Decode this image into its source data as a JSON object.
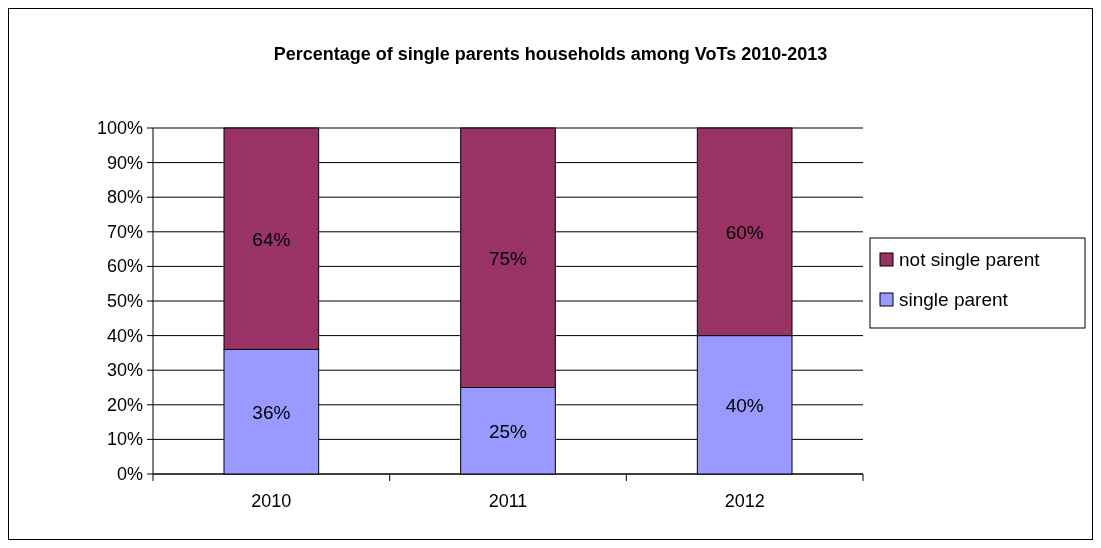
{
  "chart_data": {
    "type": "bar",
    "title": "Percentage of single parents households among VoTs 2010-2013",
    "categories": [
      "2010",
      "2011",
      "2012"
    ],
    "stacked": true,
    "ylim": [
      0,
      100
    ],
    "yticks": [
      {
        "value": 0,
        "label": "0%"
      },
      {
        "value": 10,
        "label": "10%"
      },
      {
        "value": 20,
        "label": "20%"
      },
      {
        "value": 30,
        "label": "30%"
      },
      {
        "value": 40,
        "label": "40%"
      },
      {
        "value": 50,
        "label": "50%"
      },
      {
        "value": 60,
        "label": "60%"
      },
      {
        "value": 70,
        "label": "70%"
      },
      {
        "value": 80,
        "label": "80%"
      },
      {
        "value": 90,
        "label": "90%"
      },
      {
        "value": 100,
        "label": "100%"
      }
    ],
    "series": [
      {
        "name": "single parent",
        "color": "#9999ff",
        "values": [
          36,
          25,
          40
        ],
        "value_labels": [
          "36%",
          "25%",
          "40%"
        ]
      },
      {
        "name": "not single parent",
        "color": "#993366",
        "values": [
          64,
          75,
          60
        ],
        "value_labels": [
          "64%",
          "75%",
          "60%"
        ]
      }
    ],
    "grid": "y",
    "legend": "right"
  }
}
